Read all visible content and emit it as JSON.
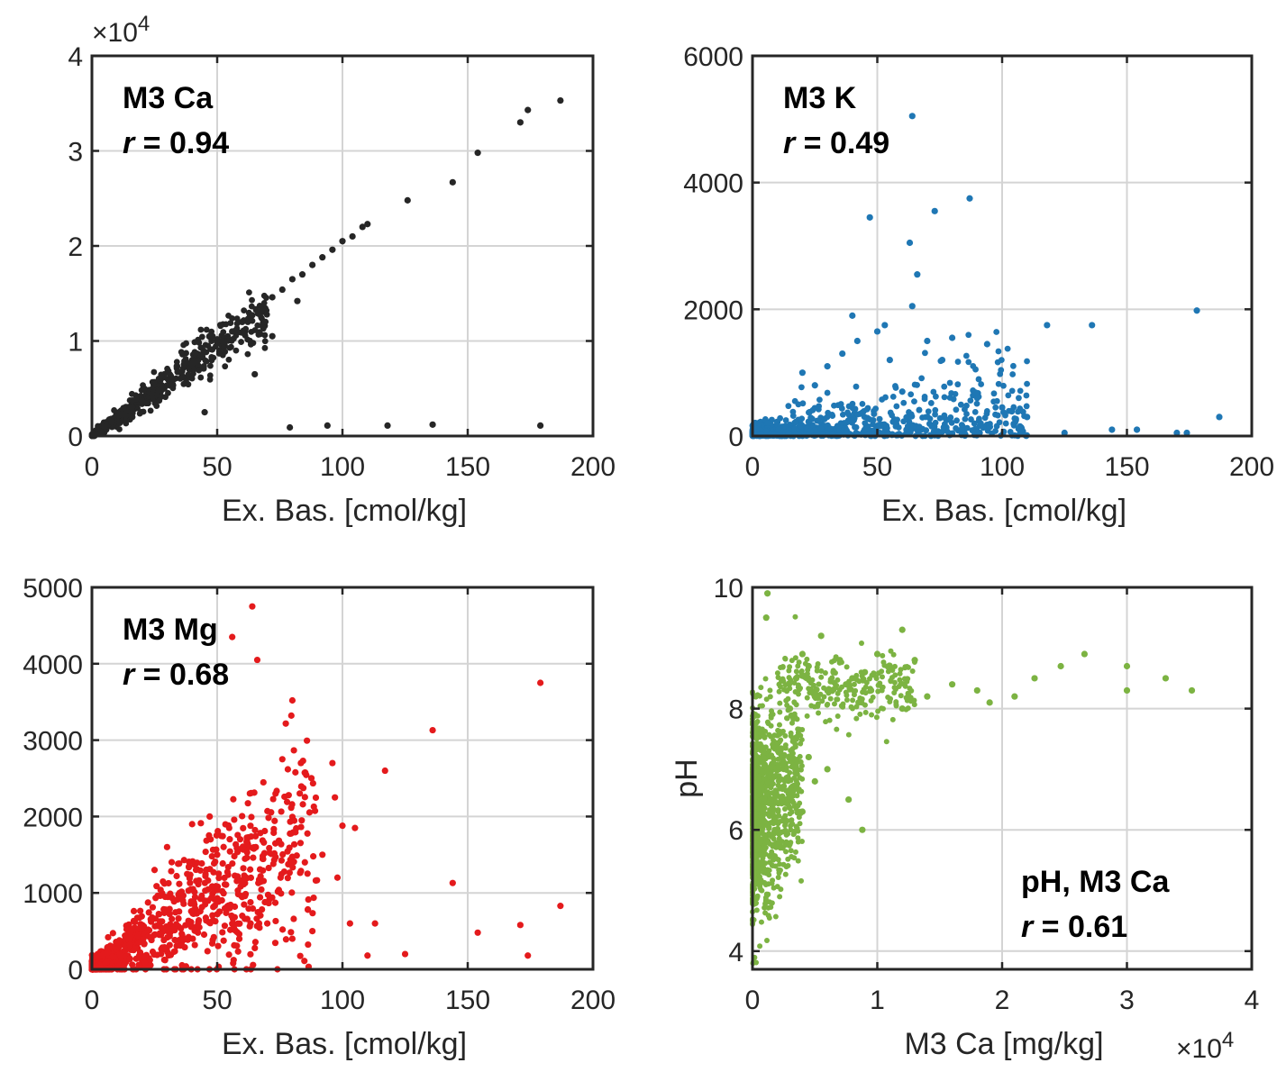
{
  "chart_data": [
    {
      "type": "scatter",
      "annotation": {
        "title": "M3 Ca",
        "r_symbol": "r",
        "r_text": " = 0.94"
      },
      "xlabel": "Ex. Bas. [cmol/kg]",
      "ylabel": "",
      "xlim": [
        0,
        200
      ],
      "ylim": [
        0,
        40000
      ],
      "xticks": [
        "0",
        "50",
        "100",
        "150",
        "200"
      ],
      "yticks": [
        "0",
        "1",
        "2",
        "3",
        "4"
      ],
      "y_multiplier": "×10",
      "y_multiplier_exp": "4",
      "grid": true,
      "color": "#262626",
      "series": [
        {
          "x": [
            8,
            12,
            16,
            20,
            24,
            28,
            32,
            36,
            40,
            44,
            48,
            52,
            56,
            60,
            64,
            68,
            72,
            76,
            80,
            84,
            88,
            92,
            96,
            100,
            104,
            108,
            110,
            126,
            144,
            154,
            171,
            174,
            187,
            45,
            65,
            72,
            82,
            79,
            94,
            118,
            136,
            179
          ],
          "y": [
            1500,
            2300,
            3000,
            3700,
            4400,
            5100,
            6000,
            6800,
            7600,
            8400,
            9100,
            10000,
            11000,
            12000,
            12700,
            13300,
            14600,
            15400,
            16500,
            17000,
            18000,
            18800,
            19600,
            20500,
            21000,
            22000,
            22300,
            24800,
            26700,
            29800,
            33000,
            34300,
            35300,
            2500,
            6500,
            10500,
            14200,
            900,
            1100,
            1100,
            1200,
            1100
          ]
        }
      ]
    },
    {
      "type": "scatter",
      "annotation": {
        "title": "M3 K",
        "r_symbol": "r",
        "r_text": " = 0.49"
      },
      "xlabel": "Ex. Bas. [cmol/kg]",
      "ylabel": "",
      "xlim": [
        0,
        200
      ],
      "ylim": [
        0,
        6000
      ],
      "xticks": [
        "0",
        "50",
        "100",
        "150",
        "200"
      ],
      "yticks": [
        "0",
        "2000",
        "4000",
        "6000"
      ],
      "grid": true,
      "color": "#1f77b4",
      "series": [
        {
          "x": [
            64,
            47,
            73,
            87,
            63,
            66,
            64,
            40,
            50,
            53,
            70,
            80,
            76,
            94,
            118,
            136,
            178,
            187,
            125,
            144,
            154,
            170,
            174,
            30,
            36,
            42,
            55,
            60,
            90,
            100,
            110,
            20,
            25
          ],
          "y": [
            5050,
            3450,
            3550,
            3750,
            3050,
            2550,
            2050,
            1900,
            1650,
            1750,
            1500,
            1550,
            1200,
            1450,
            1750,
            1750,
            1980,
            300,
            50,
            100,
            100,
            50,
            50,
            1100,
            1300,
            1500,
            1200,
            700,
            600,
            450,
            300,
            1000,
            800
          ]
        }
      ]
    },
    {
      "type": "scatter",
      "annotation": {
        "title": "M3 Mg",
        "r_symbol": "r",
        "r_text": " = 0.68"
      },
      "xlabel": "Ex. Bas. [cmol/kg]",
      "ylabel": "",
      "xlim": [
        0,
        200
      ],
      "ylim": [
        0,
        5000
      ],
      "xticks": [
        "0",
        "50",
        "100",
        "150",
        "200"
      ],
      "yticks": [
        "0",
        "1000",
        "2000",
        "3000",
        "4000",
        "5000"
      ],
      "grid": true,
      "color": "#e41a1c",
      "series": [
        {
          "x": [
            64,
            66,
            56,
            179,
            136,
            117,
            96,
            97,
            100,
            105,
            98,
            76,
            47,
            40,
            30,
            144,
            187,
            171,
            154,
            174,
            125,
            110,
            113,
            88,
            80,
            70,
            60,
            55,
            45,
            35,
            25,
            50,
            85,
            92,
            103
          ],
          "y": [
            4750,
            4050,
            4350,
            3750,
            3130,
            2600,
            2700,
            2250,
            1880,
            1850,
            1200,
            2750,
            2000,
            1900,
            1600,
            1130,
            830,
            580,
            480,
            180,
            200,
            180,
            600,
            500,
            400,
            600,
            700,
            800,
            900,
            1000,
            1300,
            1500,
            1400,
            1500,
            600
          ]
        }
      ]
    },
    {
      "type": "scatter",
      "annotation": {
        "title": "pH, M3 Ca",
        "r_symbol": "r",
        "r_text": " = 0.61"
      },
      "xlabel": "M3 Ca [mg/kg]",
      "ylabel": "pH",
      "xlim": [
        0,
        40000
      ],
      "ylim": [
        3.7,
        10
      ],
      "xticks": [
        "0",
        "1",
        "2",
        "3",
        "4"
      ],
      "yticks": [
        "4",
        "6",
        "8",
        "10"
      ],
      "x_multiplier": "×10",
      "x_multiplier_exp": "4",
      "grid": true,
      "color": "#7cb342",
      "series": [
        {
          "x": [
            1200,
            1100,
            35200,
            33100,
            30000,
            30000,
            26600,
            24700,
            22600,
            21000,
            19000,
            18000,
            16000,
            14000,
            13000,
            12000,
            10000,
            9500,
            9000,
            8500,
            8000,
            7500,
            7000,
            6500,
            6000,
            5500,
            5000,
            4500,
            4000,
            3500,
            3000,
            8800,
            7700,
            6000,
            5000,
            4500,
            4000,
            3500,
            12000
          ],
          "y": [
            9.9,
            9.5,
            8.3,
            8.5,
            8.7,
            8.3,
            8.9,
            8.7,
            8.5,
            8.2,
            8.1,
            8.3,
            8.4,
            8.2,
            8.8,
            9.3,
            8.9,
            8.3,
            8.6,
            8.1,
            8.5,
            8.4,
            8.8,
            8.6,
            8.3,
            9.2,
            8.2,
            8.7,
            8.9,
            8.5,
            8.0,
            6.0,
            6.5,
            7.0,
            6.8,
            7.2,
            6.3,
            7.5,
            8.0
          ]
        }
      ]
    }
  ]
}
